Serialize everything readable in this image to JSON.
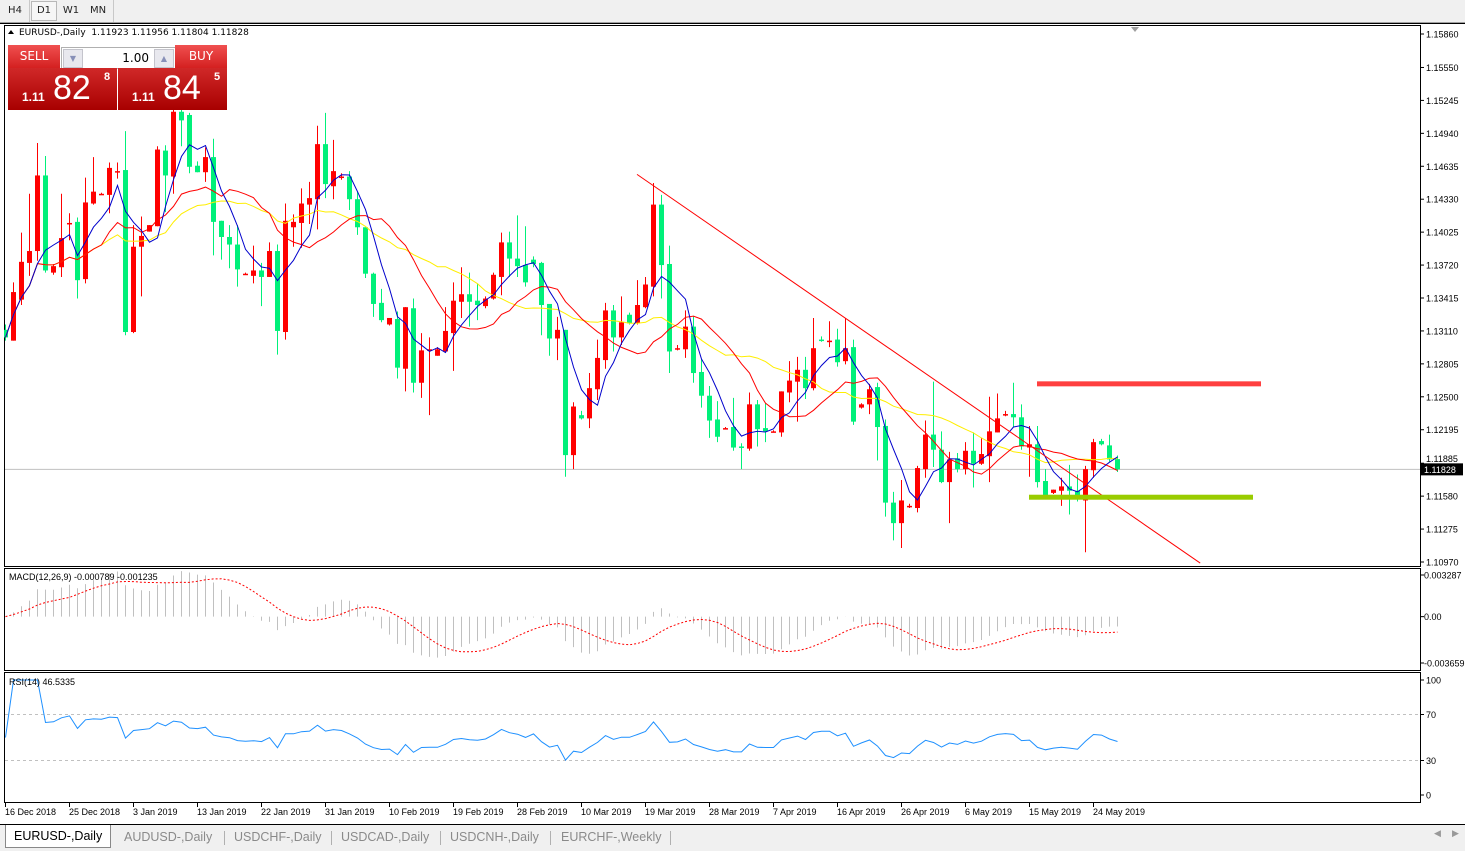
{
  "toolbar": {
    "timeframes": [
      "H4",
      "D1",
      "W1",
      "MN"
    ],
    "active": "D1"
  },
  "chart_header": {
    "symbol_timeframe": "EURUSD-,Daily",
    "ohlc_text": "1.11923 1.11956 1.11804 1.11828"
  },
  "trade_panel": {
    "sell_label": "SELL",
    "buy_label": "BUY",
    "volume": "1.00",
    "sell_price": {
      "prefix": "1.11",
      "big": "82",
      "sup": "8"
    },
    "buy_price": {
      "prefix": "1.11",
      "big": "84",
      "sup": "5"
    }
  },
  "colors": {
    "bull_candle": "#ff0000",
    "bear_candle": "#00f07a",
    "ma_fast": "#0000cc",
    "ma_mid": "#ff0000",
    "ma_slow": "#ffee00",
    "macd_hist": "#c0c0c0",
    "macd_signal": "#ff0000",
    "rsi_line": "#1e90ff",
    "resistance_line": "#ff4040",
    "support_line": "#99cc00",
    "trendline": "#ff0000"
  },
  "chart_data": [
    {
      "type": "candlestick",
      "title": "EURUSD-,Daily",
      "ylim": [
        1.1097,
        1.1586
      ],
      "yticks": [
        "1.15860",
        "1.15550",
        "1.15245",
        "1.14940",
        "1.14635",
        "1.14330",
        "1.14025",
        "1.13720",
        "1.13415",
        "1.13110",
        "1.12805",
        "1.12500",
        "1.12195",
        "1.11885",
        "1.11580",
        "1.11275",
        "1.10970"
      ],
      "current_price_label": "1.11828",
      "x_tick_labels": [
        "16 Dec 2018",
        "25 Dec 2018",
        "3 Jan 2019",
        "13 Jan 2019",
        "22 Jan 2019",
        "31 Jan 2019",
        "10 Feb 2019",
        "19 Feb 2019",
        "28 Feb 2019",
        "10 Mar 2019",
        "19 Mar 2019",
        "28 Mar 2019",
        "7 Apr 2019",
        "16 Apr 2019",
        "26 Apr 2019",
        "6 May 2019",
        "15 May 2019",
        "24 May 2019"
      ],
      "ohlc": [
        [
          1.1312,
          1.1317,
          1.1302,
          1.1305
        ],
        [
          1.1302,
          1.1356,
          1.1302,
          1.1347
        ],
        [
          1.134,
          1.1402,
          1.1335,
          1.1375
        ],
        [
          1.1374,
          1.1438,
          1.1362,
          1.1385
        ],
        [
          1.1385,
          1.1485,
          1.1376,
          1.1455
        ],
        [
          1.1455,
          1.1473,
          1.1365,
          1.1367
        ],
        [
          1.1365,
          1.1373,
          1.1363,
          1.1371
        ],
        [
          1.137,
          1.1438,
          1.1361,
          1.1397
        ],
        [
          1.1411,
          1.142,
          1.1395,
          1.1411
        ],
        [
          1.1412,
          1.1416,
          1.1341,
          1.1358
        ],
        [
          1.1359,
          1.1453,
          1.1355,
          1.143
        ],
        [
          1.1429,
          1.1472,
          1.1428,
          1.144
        ],
        [
          1.1438,
          1.1439,
          1.1437,
          1.1438
        ],
        [
          1.1437,
          1.1467,
          1.142,
          1.1462
        ],
        [
          1.1459,
          1.1467,
          1.1452,
          1.1459
        ],
        [
          1.146,
          1.1496,
          1.1307,
          1.131
        ],
        [
          1.131,
          1.1409,
          1.1309,
          1.1389
        ],
        [
          1.1389,
          1.1417,
          1.1343,
          1.1399
        ],
        [
          1.1403,
          1.1409,
          1.1403,
          1.1409
        ],
        [
          1.1408,
          1.1482,
          1.1408,
          1.1479
        ],
        [
          1.1478,
          1.1483,
          1.1421,
          1.1455
        ],
        [
          1.1454,
          1.1518,
          1.1438,
          1.1514
        ],
        [
          1.1514,
          1.1518,
          1.1482,
          1.1506
        ],
        [
          1.1511,
          1.1513,
          1.1457,
          1.1463
        ],
        [
          1.1464,
          1.1468,
          1.1458,
          1.1458
        ],
        [
          1.1458,
          1.1481,
          1.1449,
          1.1472
        ],
        [
          1.1472,
          1.1489,
          1.1381,
          1.1412
        ],
        [
          1.1413,
          1.1413,
          1.1377,
          1.1398
        ],
        [
          1.1398,
          1.1409,
          1.1369,
          1.1391
        ],
        [
          1.1391,
          1.1409,
          1.1352,
          1.1368
        ],
        [
          1.1364,
          1.1365,
          1.1363,
          1.1364
        ],
        [
          1.1362,
          1.139,
          1.1355,
          1.1367
        ],
        [
          1.1367,
          1.1374,
          1.1334,
          1.1361
        ],
        [
          1.1361,
          1.1393,
          1.1361,
          1.1385
        ],
        [
          1.1385,
          1.1391,
          1.1289,
          1.1311
        ],
        [
          1.131,
          1.1429,
          1.1303,
          1.1413
        ],
        [
          1.1407,
          1.1419,
          1.1389,
          1.1412
        ],
        [
          1.1411,
          1.1443,
          1.1388,
          1.1429
        ],
        [
          1.1428,
          1.1449,
          1.141,
          1.1434
        ],
        [
          1.1433,
          1.1501,
          1.1405,
          1.1484
        ],
        [
          1.1484,
          1.1513,
          1.1434,
          1.1447
        ],
        [
          1.1445,
          1.1488,
          1.1433,
          1.1459
        ],
        [
          1.1454,
          1.1457,
          1.1451,
          1.1454
        ],
        [
          1.1454,
          1.1459,
          1.1423,
          1.1433
        ],
        [
          1.1433,
          1.144,
          1.14,
          1.1407
        ],
        [
          1.1407,
          1.1407,
          1.136,
          1.1364
        ],
        [
          1.1364,
          1.1365,
          1.1324,
          1.1336
        ],
        [
          1.1337,
          1.135,
          1.1319,
          1.1321
        ],
        [
          1.1317,
          1.1323,
          1.1316,
          1.1323
        ],
        [
          1.1322,
          1.1329,
          1.1267,
          1.1277
        ],
        [
          1.1276,
          1.1333,
          1.1255,
          1.1333
        ],
        [
          1.1332,
          1.1341,
          1.1254,
          1.1263
        ],
        [
          1.1263,
          1.1309,
          1.1249,
          1.1293
        ],
        [
          1.1294,
          1.1305,
          1.1233,
          1.1294
        ],
        [
          1.1288,
          1.1296,
          1.1288,
          1.1294
        ],
        [
          1.1292,
          1.1333,
          1.1291,
          1.1311
        ],
        [
          1.1309,
          1.1356,
          1.1274,
          1.1339
        ],
        [
          1.1338,
          1.137,
          1.1323,
          1.1345
        ],
        [
          1.1345,
          1.1365,
          1.1315,
          1.1338
        ],
        [
          1.1339,
          1.1355,
          1.1321,
          1.1335
        ],
        [
          1.1334,
          1.1343,
          1.1332,
          1.1341
        ],
        [
          1.1341,
          1.1365,
          1.134,
          1.1363
        ],
        [
          1.1361,
          1.1402,
          1.1344,
          1.1393
        ],
        [
          1.1393,
          1.1403,
          1.1361,
          1.1378
        ],
        [
          1.1378,
          1.1418,
          1.1361,
          1.1371
        ],
        [
          1.1372,
          1.1408,
          1.1352,
          1.1356
        ],
        [
          1.1377,
          1.138,
          1.137,
          1.1373
        ],
        [
          1.1374,
          1.1375,
          1.1307,
          1.1335
        ],
        [
          1.1336,
          1.1336,
          1.1288,
          1.1304
        ],
        [
          1.1304,
          1.1324,
          1.1284,
          1.1312
        ],
        [
          1.1312,
          1.1312,
          1.1176,
          1.1196
        ],
        [
          1.1196,
          1.1245,
          1.1183,
          1.1241
        ],
        [
          1.1233,
          1.1237,
          1.1229,
          1.123
        ],
        [
          1.123,
          1.1272,
          1.1221,
          1.1258
        ],
        [
          1.1257,
          1.1303,
          1.1247,
          1.1286
        ],
        [
          1.1284,
          1.1337,
          1.1276,
          1.133
        ],
        [
          1.133,
          1.1335,
          1.1292,
          1.1305
        ],
        [
          1.1305,
          1.1343,
          1.1298,
          1.1319
        ],
        [
          1.1326,
          1.1328,
          1.1317,
          1.1318
        ],
        [
          1.1318,
          1.1358,
          1.1317,
          1.1335
        ],
        [
          1.1333,
          1.1361,
          1.1332,
          1.1354
        ],
        [
          1.1352,
          1.1448,
          1.1343,
          1.1428
        ],
        [
          1.1428,
          1.1437,
          1.1341,
          1.1372
        ],
        [
          1.1373,
          1.139,
          1.1272,
          1.1292
        ],
        [
          1.1295,
          1.1298,
          1.1293,
          1.1295
        ],
        [
          1.1294,
          1.133,
          1.1286,
          1.1315
        ],
        [
          1.1315,
          1.1325,
          1.1263,
          1.1272
        ],
        [
          1.1273,
          1.1285,
          1.124,
          1.1251
        ],
        [
          1.1251,
          1.126,
          1.1212,
          1.1228
        ],
        [
          1.1229,
          1.1246,
          1.1208,
          1.1213
        ],
        [
          1.1221,
          1.1222,
          1.122,
          1.1221
        ],
        [
          1.1222,
          1.1249,
          1.12,
          1.1203
        ],
        [
          1.1204,
          1.1207,
          1.1183,
          1.1203
        ],
        [
          1.1202,
          1.1254,
          1.12,
          1.1243
        ],
        [
          1.1243,
          1.1247,
          1.1204,
          1.122
        ],
        [
          1.1221,
          1.1244,
          1.1208,
          1.1218
        ],
        [
          1.1218,
          1.1219,
          1.1217,
          1.1218
        ],
        [
          1.1217,
          1.1255,
          1.1213,
          1.1255
        ],
        [
          1.1254,
          1.1283,
          1.1245,
          1.1265
        ],
        [
          1.1264,
          1.1287,
          1.1227,
          1.1275
        ],
        [
          1.1275,
          1.1287,
          1.1248,
          1.1258
        ],
        [
          1.1258,
          1.1323,
          1.1256,
          1.1295
        ],
        [
          1.1303,
          1.1306,
          1.1301,
          1.1302
        ],
        [
          1.1302,
          1.132,
          1.1296,
          1.1302
        ],
        [
          1.1303,
          1.1313,
          1.1278,
          1.1282
        ],
        [
          1.1283,
          1.1323,
          1.128,
          1.1295
        ],
        [
          1.1296,
          1.1303,
          1.1224,
          1.1227
        ],
        [
          1.124,
          1.1244,
          1.1239,
          1.1243
        ],
        [
          1.1243,
          1.1262,
          1.1234,
          1.1257
        ],
        [
          1.1259,
          1.1263,
          1.1191,
          1.1222
        ],
        [
          1.1223,
          1.1229,
          1.1139,
          1.1152
        ],
        [
          1.1152,
          1.1162,
          1.1117,
          1.1133
        ],
        [
          1.1133,
          1.1173,
          1.111,
          1.1154
        ],
        [
          1.1149,
          1.1151,
          1.1147,
          1.1149
        ],
        [
          1.1147,
          1.1186,
          1.1143,
          1.1184
        ],
        [
          1.1183,
          1.1228,
          1.1175,
          1.1215
        ],
        [
          1.1215,
          1.1264,
          1.1185,
          1.1201
        ],
        [
          1.1201,
          1.1218,
          1.117,
          1.1171
        ],
        [
          1.1171,
          1.1199,
          1.1133,
          1.1192
        ],
        [
          1.1193,
          1.1198,
          1.118,
          1.1183
        ],
        [
          1.1183,
          1.1208,
          1.1178,
          1.12
        ],
        [
          1.12,
          1.1217,
          1.1166,
          1.1188
        ],
        [
          1.1188,
          1.1212,
          1.1187,
          1.1197
        ],
        [
          1.1195,
          1.125,
          1.1171,
          1.1218
        ],
        [
          1.1217,
          1.1253,
          1.1217,
          1.123
        ],
        [
          1.1234,
          1.1237,
          1.1232,
          1.1234
        ],
        [
          1.1234,
          1.1263,
          1.1222,
          1.1231
        ],
        [
          1.1231,
          1.1243,
          1.1201,
          1.1204
        ],
        [
          1.1203,
          1.1223,
          1.1176,
          1.1206
        ],
        [
          1.1206,
          1.1223,
          1.1166,
          1.1171
        ],
        [
          1.1172,
          1.1183,
          1.1157,
          1.1158
        ],
        [
          1.1161,
          1.1164,
          1.116,
          1.1164
        ],
        [
          1.1163,
          1.1175,
          1.1149,
          1.1167
        ],
        [
          1.1167,
          1.1187,
          1.1141,
          1.1163
        ],
        [
          1.1163,
          1.1178,
          1.1153,
          1.1158
        ],
        [
          1.1154,
          1.1186,
          1.1106,
          1.1183
        ],
        [
          1.1182,
          1.1211,
          1.1175,
          1.1208
        ],
        [
          1.1209,
          1.1211,
          1.1205,
          1.1206
        ],
        [
          1.1205,
          1.1215,
          1.119,
          1.1192
        ],
        [
          1.11923,
          1.11956,
          1.11804,
          1.11828
        ]
      ],
      "drawings": {
        "trendline": {
          "from": {
            "bar": 79,
            "price": 1.1456
          },
          "to": {
            "bar": 149.4,
            "price": 1.1096
          }
        },
        "resistance": {
          "price": 1.1262,
          "from_bar": 129,
          "to_bar": 157
        },
        "support": {
          "price": 1.1157,
          "from_bar": 128,
          "to_bar": 156
        }
      }
    },
    {
      "type": "bar",
      "title": "MACD(12,26,9) -0.000789 -0.001235",
      "ylim": [
        -0.003659,
        0.003287
      ],
      "yticks": [
        "0.003287",
        "0.00",
        "-0.003659"
      ],
      "tick_values": [
        0.003287,
        0,
        -0.003659
      ]
    },
    {
      "type": "line",
      "title": "RSI(14) 46.5335",
      "ylim": [
        0,
        100
      ],
      "yticks": [
        "100",
        "70",
        "30",
        "0"
      ],
      "tick_values": [
        100,
        70,
        30,
        0
      ],
      "levels": [
        70,
        30
      ]
    }
  ],
  "bottom_tabs": [
    "EURUSD-,Daily",
    "AUDUSD-,Daily",
    "USDCHF-,Daily",
    "USDCAD-,Daily",
    "USDCNH-,Daily",
    "EURCHF-,Weekly"
  ],
  "active_tab": "EURUSD-,Daily",
  "scroll_arrows": {
    "left": "◀",
    "right": "▶"
  }
}
